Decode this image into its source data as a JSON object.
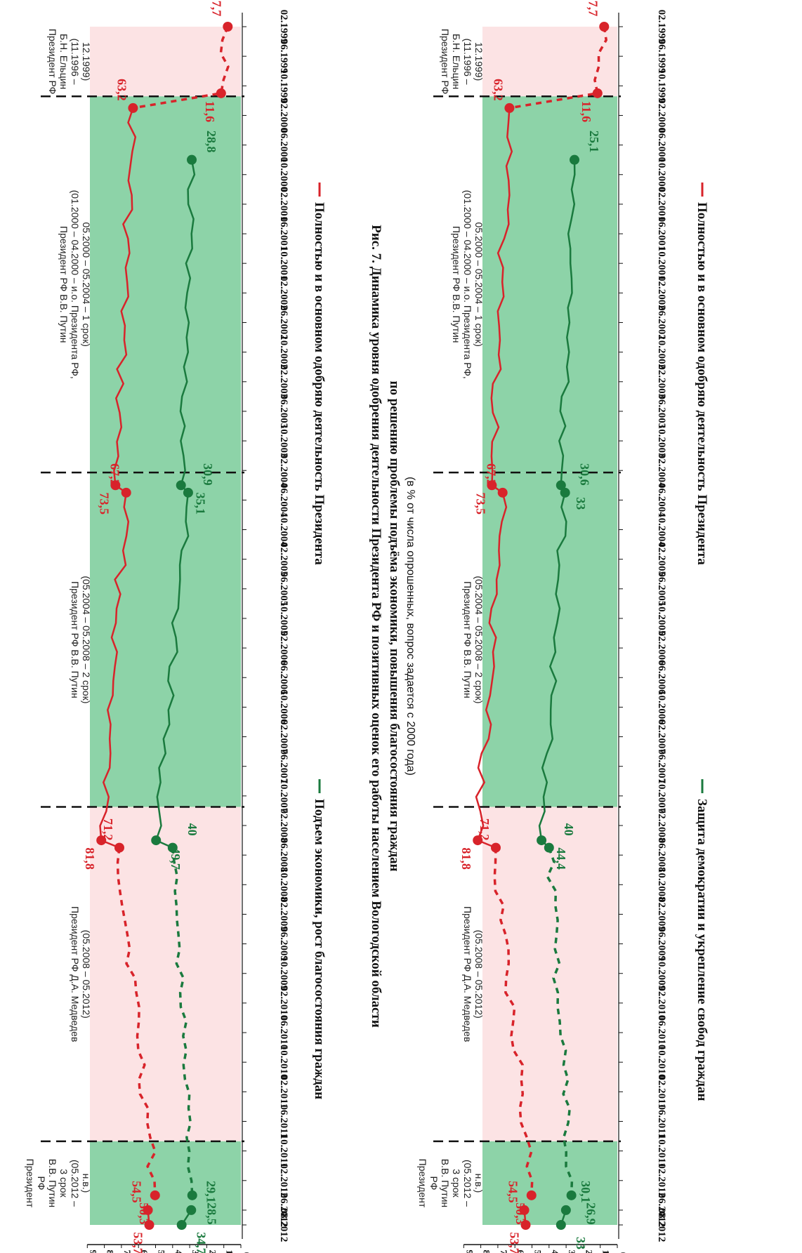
{
  "figure": {
    "caption_line1": "Рис. 7. Динамика уровня одобрения деятельности Президента РФ и позитивных оценок его работы населением Вологодской области",
    "caption_line2": "по решению проблемы подъёма экономики, повышения благосостояния граждан",
    "caption_line3": "(в % от числа опрошенных, вопрос задается с 2000 года)"
  },
  "periods": [
    {
      "lines": [
        "Президент РФ",
        "Б.Н. Ельцин",
        "(11.1996 –",
        "12.1999)"
      ],
      "start": 0,
      "end": 5,
      "zone": "pink"
    },
    {
      "lines": [
        "Президент РФ В.В. Путин",
        "(01.2000 – 04.2000 – и.о. Президента РФ,",
        "05.2000 – 05.2004 – 1 срок)"
      ],
      "start": 5,
      "end": 32,
      "zone": "green"
    },
    {
      "lines": [
        "Президент РФ В.В. Путин",
        "(05.2004 – 05.2008 – 2 срок)"
      ],
      "start": 32,
      "end": 56,
      "zone": "green"
    },
    {
      "lines": [
        "Президент РФ Д.А. Медведев",
        "(05.2008 – 05.2012)"
      ],
      "start": 56,
      "end": 80,
      "zone": "pink"
    },
    {
      "lines": [
        "Президент",
        "РФ",
        "В.В. Путин",
        "3 срок",
        "(05.2012 –",
        "н.в.)"
      ],
      "start": 80,
      "end": 86,
      "zone": "green"
    }
  ],
  "x_ticks": [
    "02.1999",
    "06.1999",
    "10.1999",
    "02.2000",
    "06.2000",
    "10.2000",
    "02.2001",
    "06.2001",
    "10.2001",
    "02.2002",
    "06.2002",
    "10.2002",
    "02.2003",
    "06.2003",
    "10.2003",
    "02.2004",
    "06.2004",
    "10.2004",
    "02.2005",
    "06.2005",
    "10.2005",
    "02.2006",
    "06.2006",
    "10.2006",
    "02.2007",
    "06.2007",
    "10.2007",
    "02.2008",
    "06.2008",
    "10.2008",
    "02.2009",
    "06.2009",
    "10.2009",
    "02.2010",
    "06.2010",
    "10.2010",
    "02.2011",
    "06.2011",
    "10.2011",
    "02.2012",
    "06.2012",
    "08.2012"
  ],
  "y_ticks": [
    "0",
    "10",
    "20",
    "30",
    "40",
    "50",
    "60",
    "70",
    "80",
    "90"
  ],
  "colors": {
    "red": "#d8232a",
    "green": "#1a7a3e",
    "pink_zone": "#fce3e4",
    "green_zone": "#8dd3a8"
  },
  "chart_data": [
    {
      "type": "line",
      "title": "",
      "ylim": [
        0,
        90
      ],
      "legend": "bottom",
      "x_range": [
        "02.1999",
        "08.2012"
      ],
      "series": [
        {
          "name": "Полностью и в основном одобряю деятельность Президента",
          "color": "#d8232a",
          "labeled_points": [
            [
              "02.1999",
              7.7
            ],
            [
              "11.1999",
              11.6
            ],
            [
              "01.2000",
              63.2
            ],
            [
              "04.2004",
              73.5
            ],
            [
              "05.2004",
              67.2
            ],
            [
              "04.2008",
              81.8
            ],
            [
              "05.2008",
              71.2
            ],
            [
              "04.2012",
              50.3
            ],
            [
              "06.2012",
              54.5
            ],
            [
              "08.2012",
              53.7
            ]
          ]
        },
        {
          "name": "Подъем экономики, рост благосостояния граждан",
          "color": "#1a7a3e",
          "labeled_points": [
            [
              "08.2000",
              28.8
            ],
            [
              "04.2004",
              35.1
            ],
            [
              "05.2004",
              30.9
            ],
            [
              "04.2008",
              49.7
            ],
            [
              "05.2008",
              40
            ],
            [
              "04.2012",
              28.5
            ],
            [
              "06.2012",
              29.1
            ],
            [
              "08.2012",
              34.7
            ]
          ]
        }
      ]
    },
    {
      "type": "line",
      "title": "",
      "ylim": [
        0,
        90
      ],
      "legend": "bottom",
      "x_range": [
        "02.1999",
        "08.2012"
      ],
      "series": [
        {
          "name": "Полностью и в основном одобряю деятельность Президента",
          "color": "#d8232a",
          "labeled_points": [
            [
              "02.1999",
              7.7
            ],
            [
              "11.1999",
              11.6
            ],
            [
              "01.2000",
              63.2
            ],
            [
              "04.2004",
              73.5
            ],
            [
              "05.2004",
              67.2
            ],
            [
              "04.2008",
              81.8
            ],
            [
              "05.2008",
              71.2
            ],
            [
              "04.2012",
              50.3
            ],
            [
              "06.2012",
              54.5
            ],
            [
              "08.2012",
              53.7
            ]
          ]
        },
        {
          "name": "Защита демократии и укрепление свобод граждан",
          "color": "#1a7a3e",
          "labeled_points": [
            [
              "08.2000",
              25.1
            ],
            [
              "04.2004",
              33
            ],
            [
              "05.2004",
              30.6
            ],
            [
              "04.2008",
              44.4
            ],
            [
              "05.2008",
              40
            ],
            [
              "04.2012",
              26.9
            ],
            [
              "06.2012",
              30.1
            ],
            [
              "08.2012",
              33
            ]
          ]
        }
      ]
    }
  ]
}
